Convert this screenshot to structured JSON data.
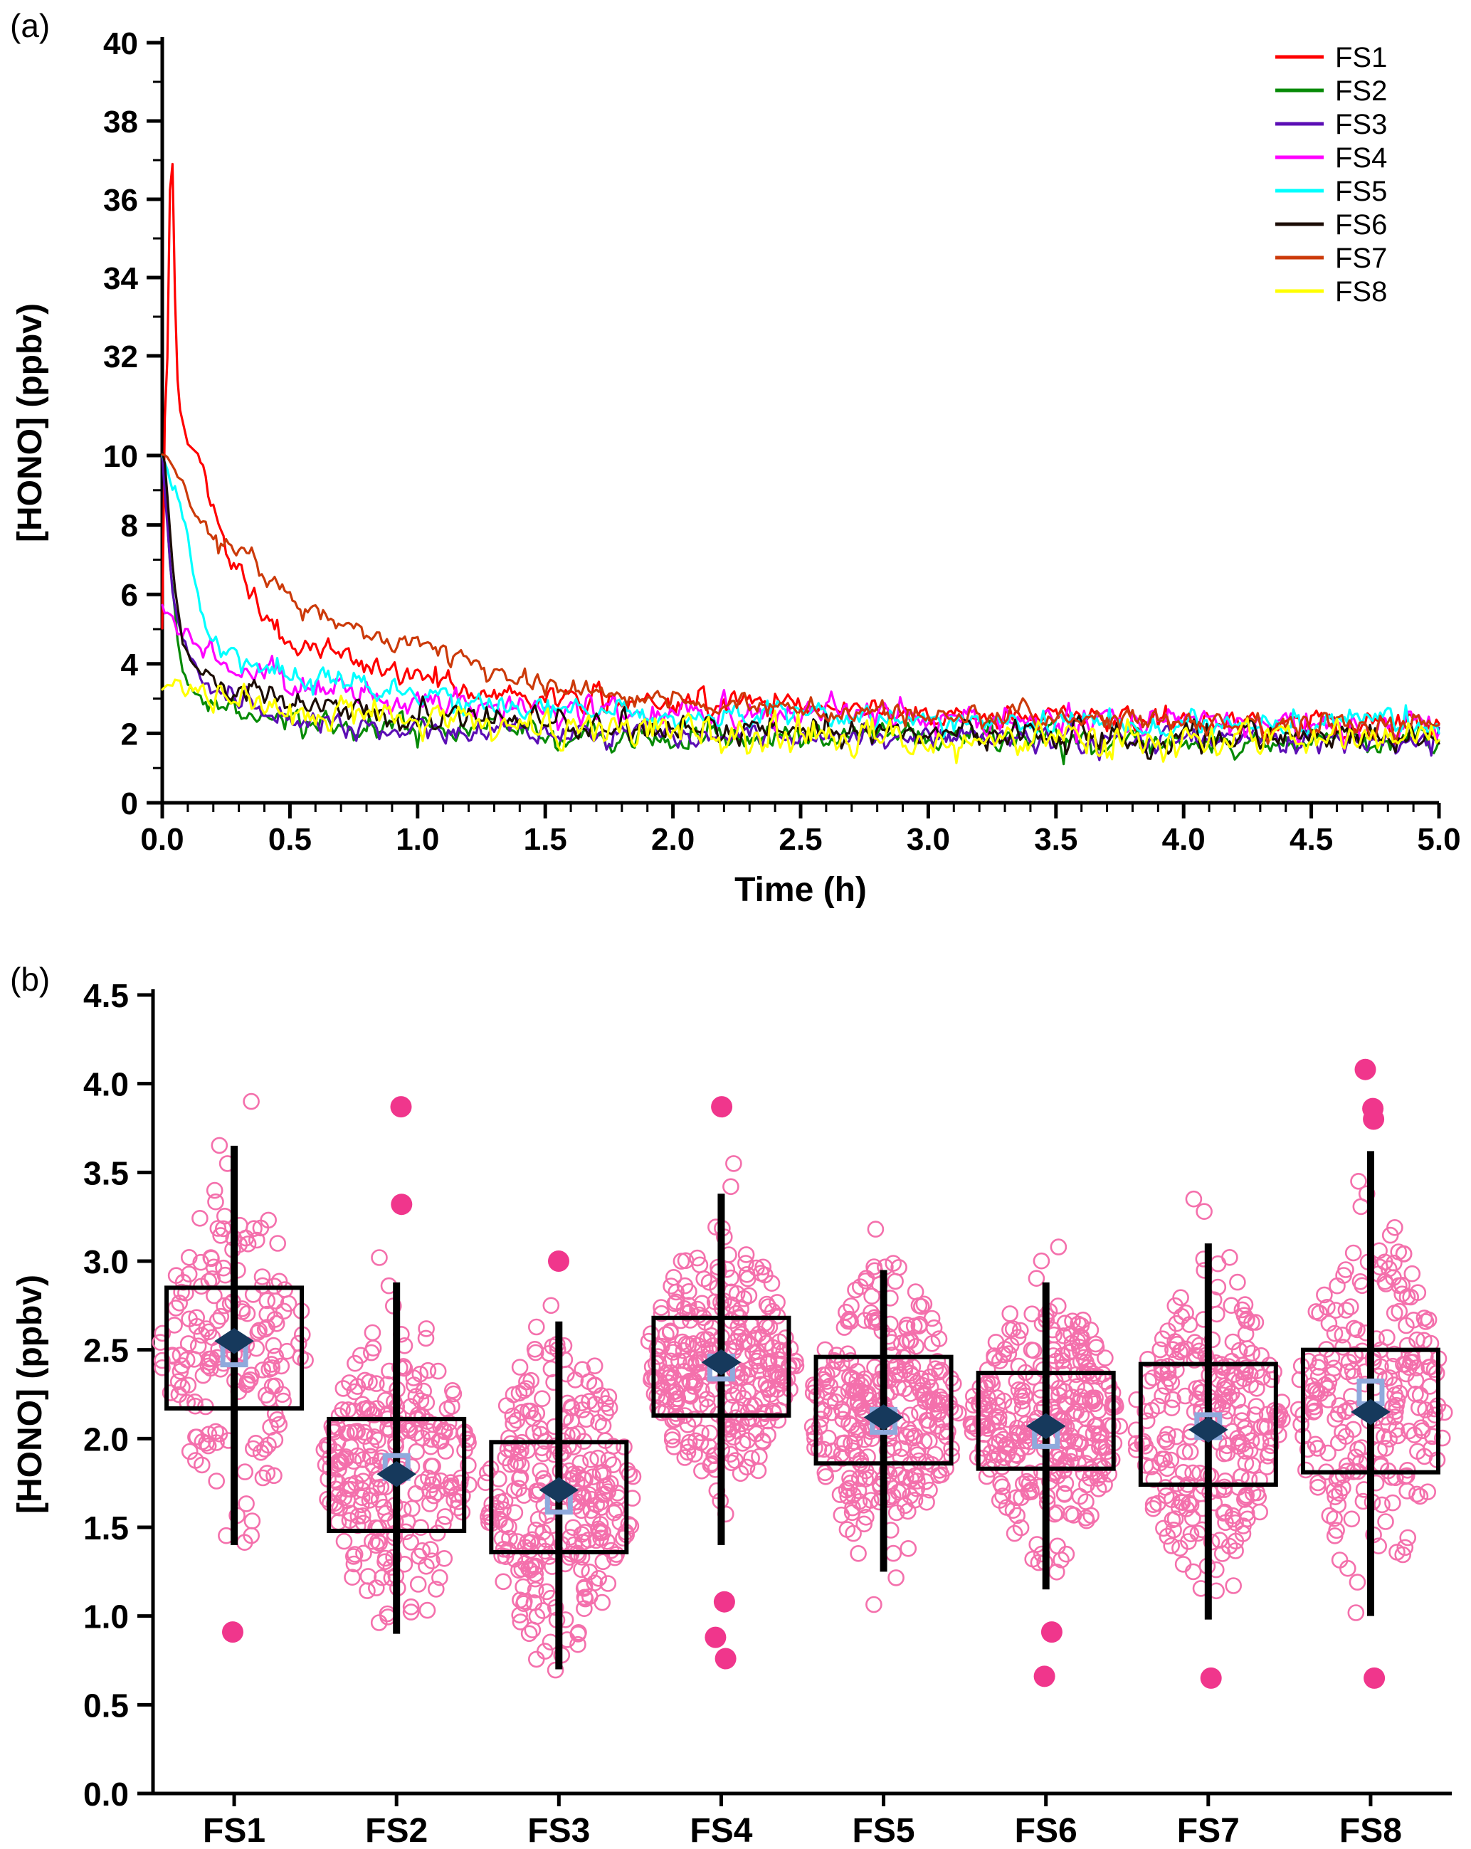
{
  "figure": {
    "background": "#ffffff",
    "panels": [
      "a",
      "b"
    ]
  },
  "chart_data": [
    {
      "id": "hono-decay-timeseries",
      "type": "line",
      "panel_label": "(a)",
      "xlabel": "Time (h)",
      "ylabel": "[HONO] (ppbv)",
      "x_range": [
        0,
        5
      ],
      "x_tick_labels": [
        "0.0",
        "0.5",
        "1.0",
        "1.5",
        "2.0",
        "2.5",
        "3.0",
        "3.5",
        "4.0",
        "4.5",
        "5.0"
      ],
      "x_minor_tick_step": 0.1,
      "y_break": {
        "lower": [
          0,
          10
        ],
        "upper": [
          32,
          40
        ]
      },
      "y_tick_labels_upper": [
        "40",
        "38",
        "36",
        "34",
        "32"
      ],
      "y_tick_labels_lower": [
        "10",
        "8",
        "6",
        "4",
        "2",
        "0"
      ],
      "grid": false,
      "legend_position": "top-right",
      "legend_entries": [
        "FS1",
        "FS2",
        "FS3",
        "FS4",
        "FS5",
        "FS6",
        "FS7",
        "FS8"
      ],
      "series": [
        {
          "name": "FS1",
          "color": "#FF0000",
          "noise": 0.32,
          "keypoints": [
            [
              0.0,
              5.0
            ],
            [
              0.02,
              31.5
            ],
            [
              0.035,
              38.6
            ],
            [
              0.05,
              33.5
            ],
            [
              0.07,
              20.0
            ],
            [
              0.1,
              12.5
            ],
            [
              0.15,
              9.8
            ],
            [
              0.2,
              8.3
            ],
            [
              0.25,
              7.4
            ],
            [
              0.3,
              6.8
            ],
            [
              0.35,
              6.0
            ],
            [
              0.4,
              5.3
            ],
            [
              0.5,
              4.6
            ],
            [
              0.6,
              4.4
            ],
            [
              0.7,
              4.2
            ],
            [
              0.85,
              3.9
            ],
            [
              1.0,
              3.6
            ],
            [
              1.2,
              3.3
            ],
            [
              1.5,
              3.0
            ],
            [
              1.8,
              2.9
            ],
            [
              2.2,
              3.0
            ],
            [
              2.6,
              2.8
            ],
            [
              3.0,
              2.5
            ],
            [
              3.5,
              2.5
            ],
            [
              4.0,
              2.4
            ],
            [
              4.5,
              2.3
            ],
            [
              5.0,
              2.3
            ]
          ]
        },
        {
          "name": "FS2",
          "color": "#068A06",
          "noise": 0.33,
          "keypoints": [
            [
              0.0,
              10.5
            ],
            [
              0.03,
              7.0
            ],
            [
              0.06,
              4.5
            ],
            [
              0.1,
              3.2
            ],
            [
              0.15,
              2.9
            ],
            [
              0.25,
              2.7
            ],
            [
              0.4,
              2.4
            ],
            [
              0.6,
              2.2
            ],
            [
              0.8,
              2.1
            ],
            [
              1.2,
              2.0
            ],
            [
              1.8,
              1.9
            ],
            [
              2.5,
              1.9
            ],
            [
              3.5,
              1.8
            ],
            [
              5.0,
              1.8
            ]
          ]
        },
        {
          "name": "FS3",
          "color": "#5B0EB5",
          "noise": 0.3,
          "keypoints": [
            [
              0.0,
              10.0
            ],
            [
              0.04,
              6.0
            ],
            [
              0.08,
              4.7
            ],
            [
              0.15,
              3.6
            ],
            [
              0.25,
              3.1
            ],
            [
              0.4,
              2.7
            ],
            [
              0.6,
              2.3
            ],
            [
              0.9,
              2.1
            ],
            [
              1.4,
              2.0
            ],
            [
              2.0,
              1.9
            ],
            [
              3.0,
              1.9
            ],
            [
              4.0,
              1.8
            ],
            [
              5.0,
              1.8
            ]
          ]
        },
        {
          "name": "FS4",
          "color": "#FF00FF",
          "noise": 0.38,
          "keypoints": [
            [
              0.0,
              5.8
            ],
            [
              0.08,
              4.8
            ],
            [
              0.15,
              4.4
            ],
            [
              0.3,
              3.9
            ],
            [
              0.5,
              3.4
            ],
            [
              0.8,
              3.0
            ],
            [
              1.1,
              2.9
            ],
            [
              1.5,
              2.7
            ],
            [
              2.0,
              2.6
            ],
            [
              3.0,
              2.5
            ],
            [
              4.0,
              2.4
            ],
            [
              5.0,
              2.4
            ]
          ]
        },
        {
          "name": "FS5",
          "color": "#00FFFF",
          "noise": 0.33,
          "keypoints": [
            [
              0.0,
              10.0
            ],
            [
              0.05,
              9.0
            ],
            [
              0.1,
              7.8
            ],
            [
              0.15,
              5.6
            ],
            [
              0.2,
              4.7
            ],
            [
              0.3,
              4.2
            ],
            [
              0.45,
              3.8
            ],
            [
              0.6,
              3.5
            ],
            [
              0.8,
              3.2
            ],
            [
              1.0,
              3.0
            ],
            [
              1.4,
              2.8
            ],
            [
              2.0,
              2.5
            ],
            [
              3.0,
              2.4
            ],
            [
              4.0,
              2.3
            ],
            [
              5.0,
              2.3
            ]
          ]
        },
        {
          "name": "FS6",
          "color": "#1C0D06",
          "noise": 0.33,
          "keypoints": [
            [
              0.0,
              10.7
            ],
            [
              0.04,
              7.0
            ],
            [
              0.08,
              4.5
            ],
            [
              0.15,
              3.7
            ],
            [
              0.25,
              3.3
            ],
            [
              0.4,
              3.0
            ],
            [
              0.6,
              2.8
            ],
            [
              0.9,
              2.5
            ],
            [
              1.3,
              2.3
            ],
            [
              2.0,
              2.1
            ],
            [
              3.0,
              2.0
            ],
            [
              4.0,
              1.9
            ],
            [
              5.0,
              1.9
            ]
          ]
        },
        {
          "name": "FS7",
          "color": "#CC3A0A",
          "noise": 0.3,
          "keypoints": [
            [
              0.0,
              10.2
            ],
            [
              0.08,
              9.2
            ],
            [
              0.15,
              8.0
            ],
            [
              0.25,
              7.4
            ],
            [
              0.35,
              7.0
            ],
            [
              0.45,
              6.2
            ],
            [
              0.55,
              5.8
            ],
            [
              0.7,
              5.2
            ],
            [
              0.85,
              4.8
            ],
            [
              1.0,
              4.4
            ],
            [
              1.15,
              4.1
            ],
            [
              1.3,
              3.7
            ],
            [
              1.5,
              3.3
            ],
            [
              1.8,
              3.0
            ],
            [
              2.2,
              2.8
            ],
            [
              2.7,
              2.6
            ],
            [
              3.2,
              2.5
            ],
            [
              4.0,
              2.3
            ],
            [
              5.0,
              2.2
            ]
          ]
        },
        {
          "name": "FS8",
          "color": "#FFFF00",
          "noise": 0.42,
          "keypoints": [
            [
              0.0,
              3.3
            ],
            [
              0.15,
              3.0
            ],
            [
              0.4,
              2.8
            ],
            [
              0.7,
              2.6
            ],
            [
              1.0,
              2.4
            ],
            [
              1.5,
              2.2
            ],
            [
              2.0,
              2.0
            ],
            [
              2.6,
              1.9
            ],
            [
              3.2,
              1.8
            ],
            [
              4.0,
              1.8
            ],
            [
              5.0,
              1.8
            ]
          ]
        }
      ]
    },
    {
      "id": "hono-boxplot",
      "type": "box",
      "panel_label": "(b)",
      "ylabel": "[HONO] (ppbv)",
      "y_range": [
        0,
        4.5
      ],
      "y_tick_labels": [
        "0.0",
        "0.5",
        "1.0",
        "1.5",
        "2.0",
        "2.5",
        "3.0",
        "3.5",
        "4.0",
        "4.5"
      ],
      "categories": [
        "FS1",
        "FS2",
        "FS3",
        "FS4",
        "FS5",
        "FS6",
        "FS7",
        "FS8"
      ],
      "colors": {
        "point": "#F470AC",
        "outlier": "#F0368C",
        "box": "#000000",
        "whisker": "#000000",
        "mean": "#16395C",
        "median": "#8FAADC"
      },
      "marker_legend": {
        "diamond": "mean",
        "open_square": "median",
        "open_circle": "data point",
        "filled_circle": "outlier"
      },
      "groups": [
        {
          "name": "FS1",
          "q1": 2.17,
          "median": 2.48,
          "q3": 2.85,
          "mean": 2.55,
          "whisker_low": 1.4,
          "whisker_high": 3.65,
          "outliers": [
            0.91
          ],
          "cloud": {
            "center": 2.52,
            "sd": 0.4,
            "min": 1.35,
            "max": 3.9,
            "n": 170,
            "extras": [
              3.9,
              3.55
            ]
          }
        },
        {
          "name": "FS2",
          "q1": 1.48,
          "median": 1.84,
          "q3": 2.11,
          "mean": 1.8,
          "whisker_low": 0.9,
          "whisker_high": 2.88,
          "outliers": [
            3.87,
            3.32
          ],
          "cloud": {
            "center": 1.82,
            "sd": 0.37,
            "min": 0.74,
            "max": 3.05,
            "n": 260,
            "extras": [
              3.02
            ]
          }
        },
        {
          "name": "FS3",
          "q1": 1.36,
          "median": 1.65,
          "q3": 1.98,
          "mean": 1.71,
          "whisker_low": 0.7,
          "whisker_high": 2.66,
          "outliers": [
            3.0
          ],
          "cloud": {
            "center": 1.68,
            "sd": 0.4,
            "min": 0.55,
            "max": 2.78,
            "n": 280,
            "extras": [
              2.75
            ]
          }
        },
        {
          "name": "FS4",
          "q1": 2.13,
          "median": 2.4,
          "q3": 2.68,
          "mean": 2.43,
          "whisker_low": 1.4,
          "whisker_high": 3.38,
          "outliers": [
            3.87,
            1.08,
            0.88,
            0.76
          ],
          "cloud": {
            "center": 2.42,
            "sd": 0.32,
            "min": 1.38,
            "max": 3.55,
            "n": 300,
            "extras": [
              3.55,
              3.42
            ]
          }
        },
        {
          "name": "FS5",
          "q1": 1.86,
          "median": 2.1,
          "q3": 2.46,
          "mean": 2.12,
          "whisker_low": 1.25,
          "whisker_high": 2.95,
          "outliers": [],
          "cloud": {
            "center": 2.16,
            "sd": 0.36,
            "min": 0.97,
            "max": 3.2,
            "n": 300,
            "extras": [
              3.18
            ]
          }
        },
        {
          "name": "FS6",
          "q1": 1.83,
          "median": 2.02,
          "q3": 2.37,
          "mean": 2.07,
          "whisker_low": 1.15,
          "whisker_high": 2.88,
          "outliers": [
            0.91,
            0.66
          ],
          "cloud": {
            "center": 2.1,
            "sd": 0.33,
            "min": 1.1,
            "max": 3.1,
            "n": 300,
            "extras": [
              3.08
            ]
          }
        },
        {
          "name": "FS7",
          "q1": 1.74,
          "median": 2.07,
          "q3": 2.42,
          "mean": 2.05,
          "whisker_low": 0.98,
          "whisker_high": 3.1,
          "outliers": [
            0.65
          ],
          "cloud": {
            "center": 2.08,
            "sd": 0.38,
            "min": 1.0,
            "max": 3.35,
            "n": 260,
            "extras": [
              3.35,
              3.28
            ]
          }
        },
        {
          "name": "FS8",
          "q1": 1.81,
          "median": 2.26,
          "q3": 2.5,
          "mean": 2.15,
          "whisker_low": 1.0,
          "whisker_high": 3.62,
          "outliers": [
            4.08,
            3.86,
            3.8,
            0.65
          ],
          "cloud": {
            "center": 2.2,
            "sd": 0.44,
            "min": 1.0,
            "max": 3.45,
            "n": 230,
            "extras": [
              3.45,
              3.38
            ]
          }
        }
      ]
    }
  ]
}
